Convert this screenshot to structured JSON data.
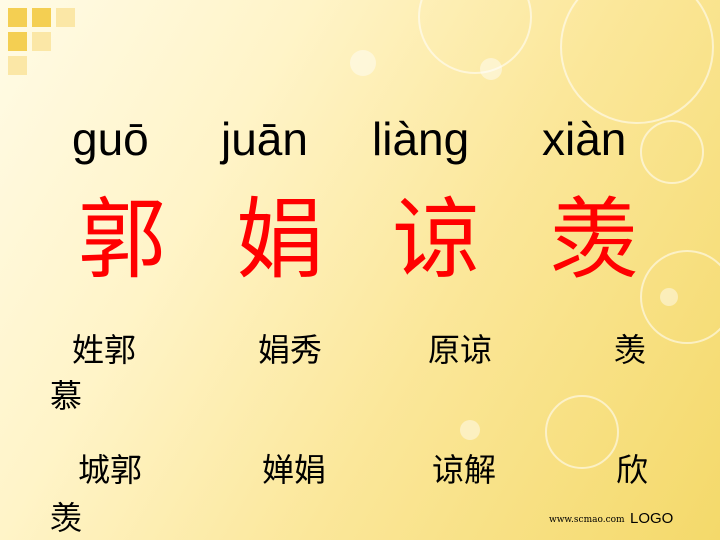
{
  "pinyin": [
    "guō",
    "juān",
    "liàng",
    "xiàn"
  ],
  "characters": [
    "郭",
    "娟",
    "谅",
    "羡"
  ],
  "words_row1": [
    "姓郭",
    "娟秀",
    "原谅",
    "羡"
  ],
  "words_row1_wrap": "慕",
  "words_row2": [
    "城郭",
    "婵娟",
    "谅解",
    "欣"
  ],
  "words_row2_wrap": "羡",
  "footer": {
    "url": "www.scmao.com",
    "logo": "LOGO"
  },
  "colors": {
    "character": "#ff0000",
    "text": "#000000",
    "accent_squares": "#f4cf52"
  }
}
